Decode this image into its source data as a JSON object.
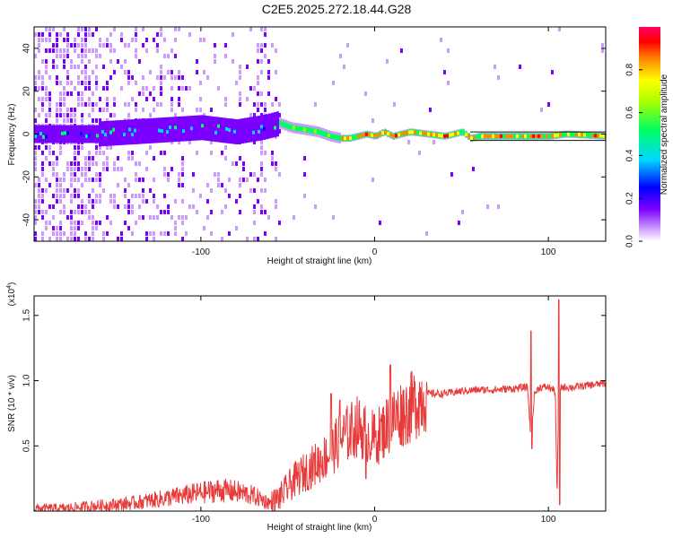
{
  "title": "C2E5.2025.272.18.44.G28",
  "chart_data": [
    {
      "type": "heatmap",
      "xlabel": "Height of straight line (km)",
      "ylabel": "Frequency (Hz)",
      "xlim": [
        -196,
        133
      ],
      "ylim": [
        -50,
        50
      ],
      "xticks": [
        -100,
        0,
        100
      ],
      "yticks": [
        -40,
        -20,
        0,
        20,
        40
      ],
      "colorbar": {
        "label": "Normalized spectral amplitude",
        "range": [
          0.0,
          1.0
        ],
        "ticks": [
          "0.0",
          "0.2",
          "0.4",
          "0.6",
          "0.8"
        ]
      },
      "ridge": {
        "x": [
          -160,
          -140,
          -120,
          -100,
          -80,
          -65,
          -55,
          -48,
          -40,
          -33,
          -26,
          -20,
          -15,
          -10,
          -5,
          0,
          5,
          10,
          20,
          30,
          40,
          50,
          55,
          60,
          80,
          100,
          110,
          133
        ],
        "y": [
          0,
          1,
          2,
          3,
          1,
          3,
          5,
          3,
          2,
          1,
          -1,
          -2,
          -2,
          -1,
          0,
          -1,
          1,
          -1,
          1,
          0,
          -1,
          1,
          -2,
          -1,
          -1,
          -1,
          0,
          -1
        ]
      }
    },
    {
      "type": "line",
      "series": [
        {
          "x": [
            -196,
            -180,
            -160,
            -140,
            -120,
            -100,
            -90,
            -80,
            -70,
            -60,
            -55,
            -50,
            -45,
            -40,
            -35,
            -30,
            -25,
            -20,
            -15,
            -10,
            -5,
            0,
            5,
            10,
            15,
            20,
            25,
            30,
            40,
            50,
            60,
            70,
            80,
            88,
            90,
            92,
            95,
            100,
            104,
            105,
            106,
            110,
            115,
            120,
            133
          ],
          "y": [
            0.02,
            0.02,
            0.04,
            0.06,
            0.1,
            0.14,
            0.16,
            0.15,
            0.12,
            0.06,
            0.1,
            0.18,
            0.25,
            0.3,
            0.35,
            0.4,
            0.45,
            0.55,
            0.6,
            0.65,
            0.6,
            0.55,
            0.62,
            0.7,
            0.75,
            0.78,
            0.85,
            0.9,
            0.9,
            0.92,
            0.93,
            0.93,
            0.94,
            0.95,
            0.55,
            0.9,
            0.95,
            0.95,
            0.92,
            0.08,
            0.95,
            0.95,
            0.95,
            0.96,
            0.98
          ]
        }
      ],
      "spikes": [
        {
          "x": -25,
          "y": 0.9
        },
        {
          "x": -20,
          "y": 0.85
        },
        {
          "x": -5,
          "y": 0.25
        },
        {
          "x": 9,
          "y": 1.12
        },
        {
          "x": 90,
          "y": 1.38
        },
        {
          "x": 90.5,
          "y": 0.48
        },
        {
          "x": 106,
          "y": 1.62
        },
        {
          "x": 106.5,
          "y": 0.05
        }
      ],
      "xlabel": "Height of straight line (km)",
      "ylabel": "SNR (10 * v/v)",
      "scale_note": "(x10",
      "scale_exp": "4",
      "xlim": [
        -196,
        133
      ],
      "ylim": [
        0,
        1.65
      ],
      "xticks": [
        -100,
        0,
        100
      ],
      "yticks": [
        "0.5",
        "1.0",
        "1.5"
      ],
      "line_color": "#e83a3a"
    }
  ]
}
